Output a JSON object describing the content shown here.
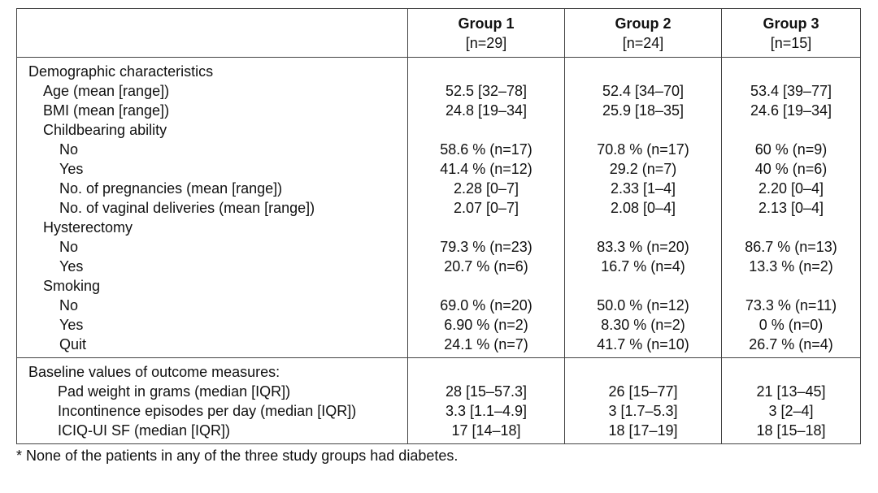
{
  "header": {
    "groups": [
      {
        "name": "Group 1",
        "n": "[n=29]"
      },
      {
        "name": "Group 2",
        "n": "[n=24]"
      },
      {
        "name": "Group 3",
        "n": "[n=15]"
      }
    ]
  },
  "sections": [
    {
      "title": "Demographic characteristics",
      "rows": [
        {
          "label": "Age (mean [range])",
          "level": 1,
          "values": [
            "52.5 [32–78]",
            "52.4 [34–70]",
            "53.4 [39–77]"
          ]
        },
        {
          "label": "BMI (mean [range])",
          "level": 1,
          "values": [
            "24.8 [19–34]",
            "25.9 [18–35]",
            "24.6 [19–34]"
          ]
        },
        {
          "label": "Childbearing ability",
          "level": 1,
          "values": [
            "",
            "",
            ""
          ]
        },
        {
          "label": "No",
          "level": 2,
          "values": [
            "58.6 % (n=17)",
            "70.8 % (n=17)",
            "60 % (n=9)"
          ]
        },
        {
          "label": "Yes",
          "level": 2,
          "values": [
            "41.4 % (n=12)",
            "29.2 (n=7)",
            "40 % (n=6)"
          ]
        },
        {
          "label": "No. of pregnancies (mean [range])",
          "level": 2,
          "values": [
            "2.28 [0–7]",
            "2.33 [1–4]",
            "2.20 [0–4]"
          ]
        },
        {
          "label": "No. of vaginal deliveries (mean [range])",
          "level": 2,
          "values": [
            "2.07 [0–7]",
            "2.08 [0–4]",
            "2.13 [0–4]"
          ]
        },
        {
          "label": "Hysterectomy",
          "level": 1,
          "values": [
            "",
            "",
            ""
          ]
        },
        {
          "label": "No",
          "level": 2,
          "values": [
            "79.3 % (n=23)",
            "83.3 % (n=20)",
            "86.7 % (n=13)"
          ]
        },
        {
          "label": "Yes",
          "level": 2,
          "values": [
            "20.7 % (n=6)",
            "16.7 % (n=4)",
            "13.3 % (n=2)"
          ]
        },
        {
          "label": "Smoking",
          "level": 1,
          "values": [
            "",
            "",
            ""
          ]
        },
        {
          "label": "No",
          "level": 2,
          "values": [
            "69.0 % (n=20)",
            "50.0 % (n=12)",
            "73.3 % (n=11)"
          ]
        },
        {
          "label": "Yes",
          "level": 2,
          "values": [
            "6.90 % (n=2)",
            "8.30 % (n=2)",
            "0 % (n=0)"
          ]
        },
        {
          "label": "Quit",
          "level": 2,
          "values": [
            "24.1 % (n=7)",
            "41.7 % (n=10)",
            "26.7 % (n=4)"
          ]
        }
      ]
    },
    {
      "title": "Baseline values of outcome measures:",
      "rows": [
        {
          "label": "Pad weight in grams (median [IQR])",
          "level": 3,
          "values": [
            "28 [15–57.3]",
            "26 [15–77]",
            "21 [13–45]"
          ]
        },
        {
          "label": "Incontinence episodes per day (median [IQR])",
          "level": 3,
          "values": [
            "3.3 [1.1–4.9]",
            "3 [1.7–5.3]",
            "3 [2–4]"
          ]
        },
        {
          "label": "ICIQ-UI SF (median [IQR])",
          "level": 3,
          "values": [
            "17 [14–18]",
            "18 [17–19]",
            "18 [15–18]"
          ]
        }
      ]
    }
  ],
  "footnote": "* None of the patients in any of the three study groups had diabetes."
}
